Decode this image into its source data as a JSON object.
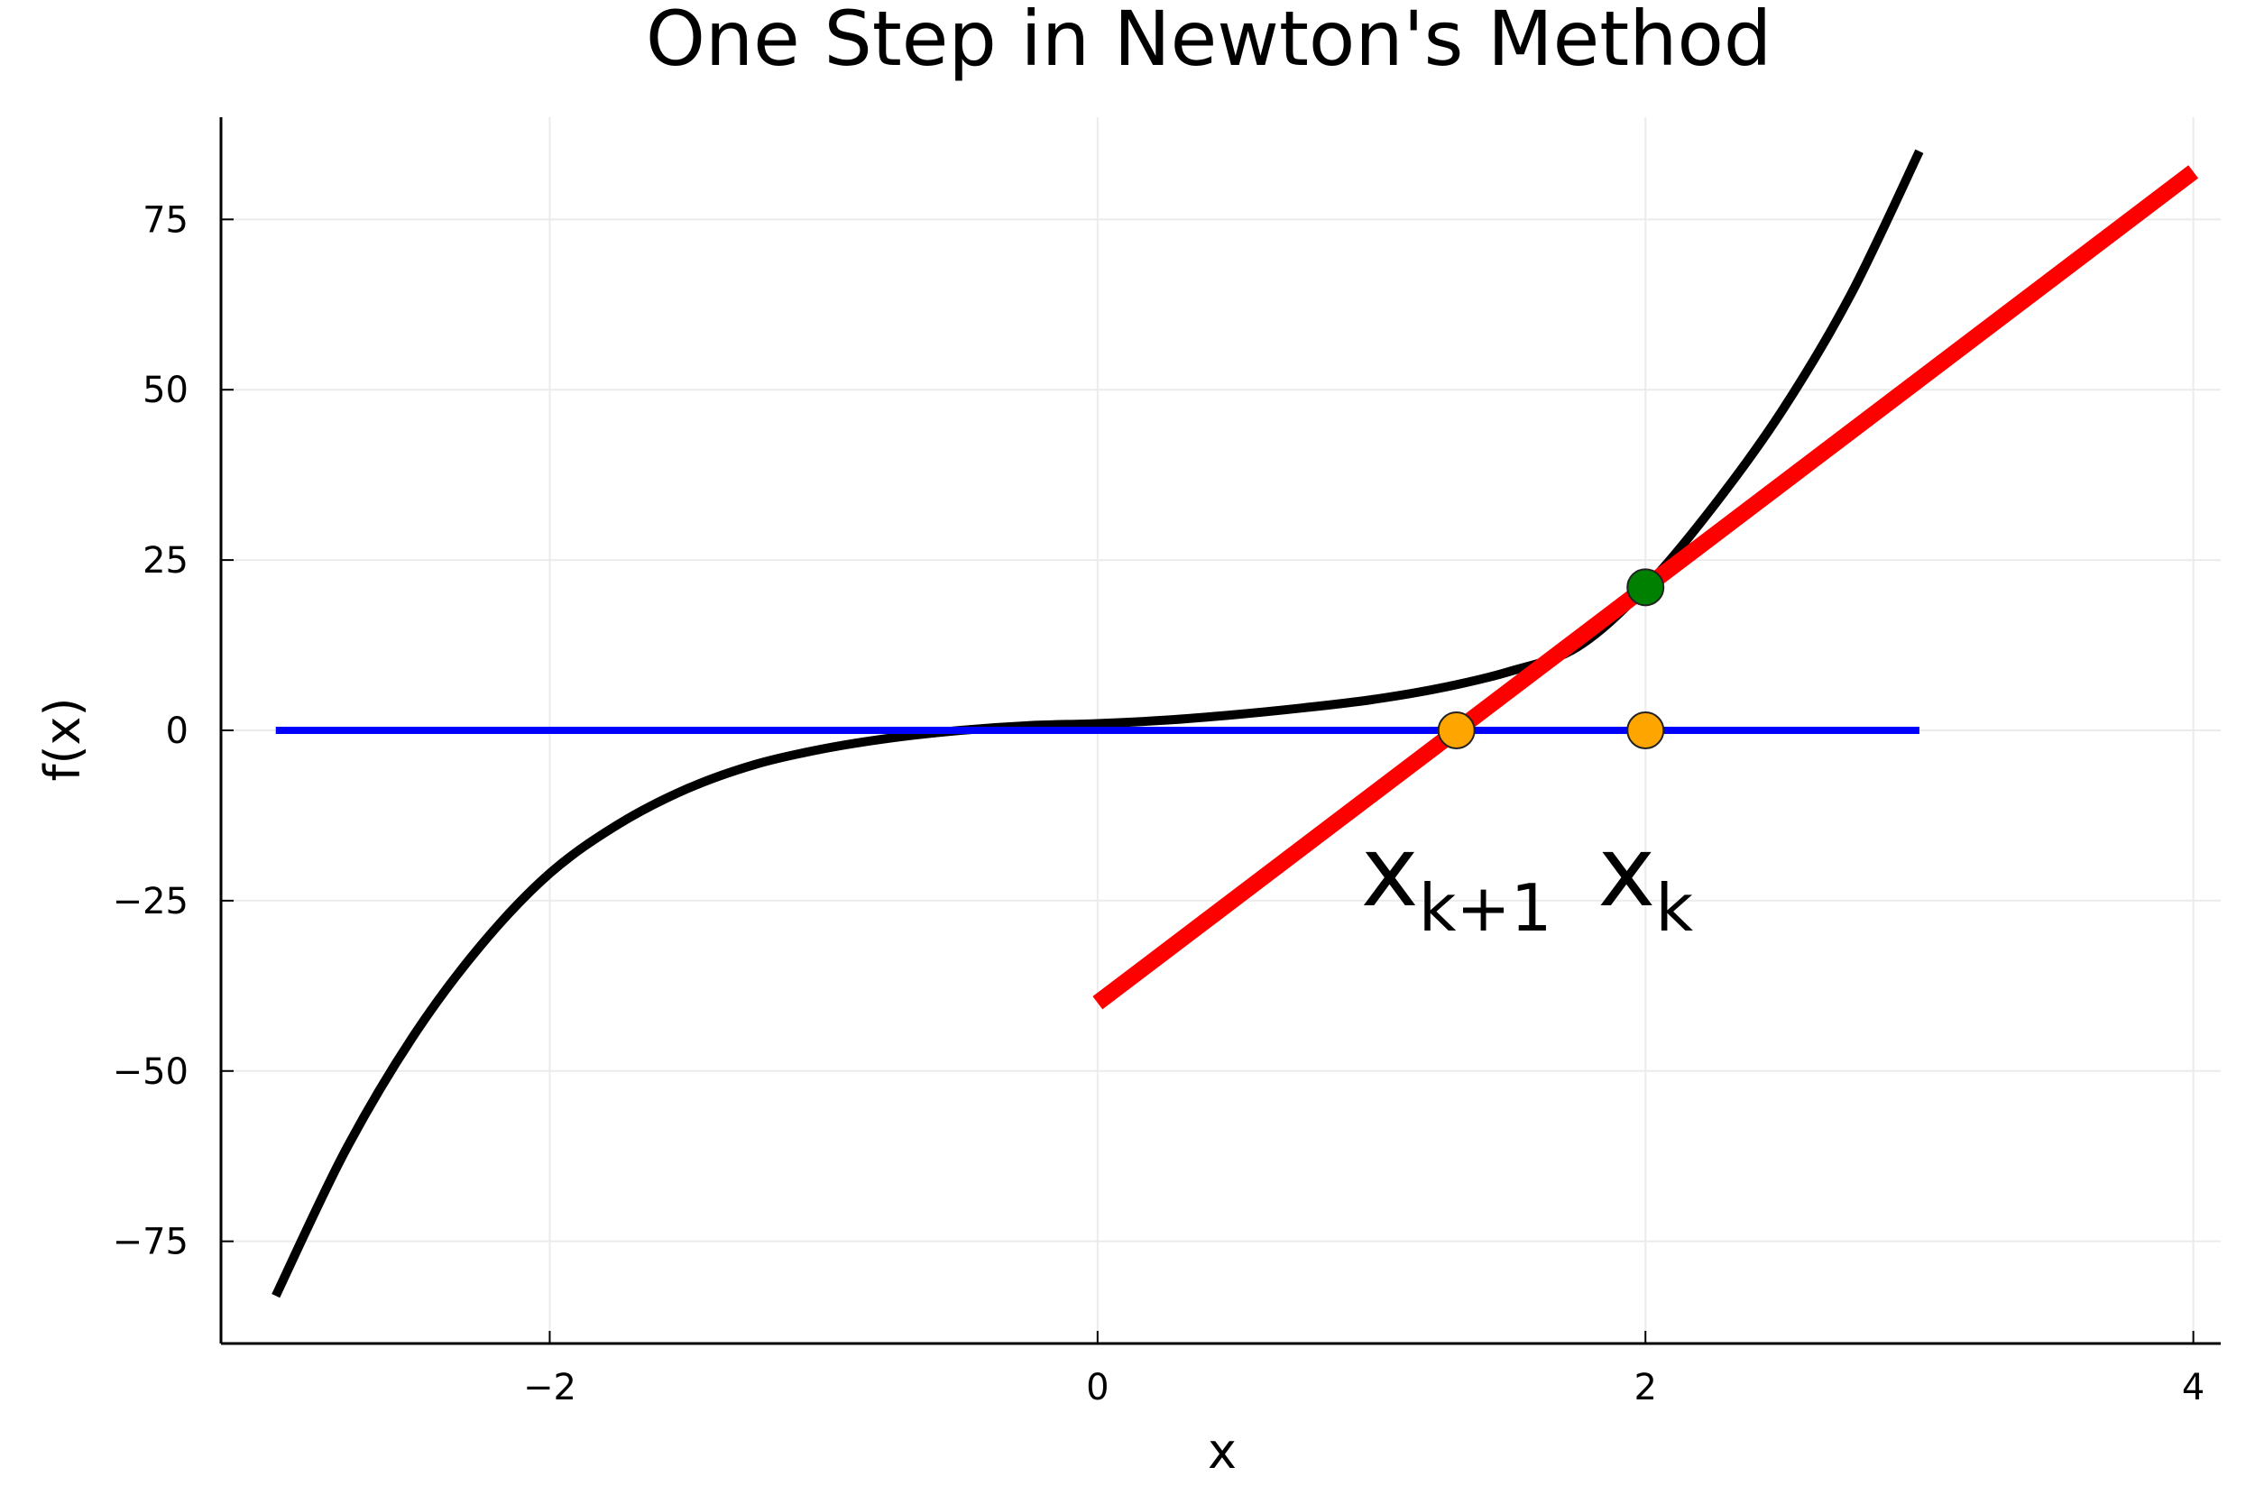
{
  "chart_data": {
    "type": "line",
    "title": "One Step in Newton's Method",
    "xlabel": "x",
    "ylabel": "f(x)",
    "xlim": [
      -3.2,
      4.1
    ],
    "ylim": [
      -90,
      90
    ],
    "xticks": [
      -2,
      0,
      2,
      4
    ],
    "xtick_labels": [
      "−2",
      "0",
      "2",
      "4"
    ],
    "yticks": [
      75,
      50,
      25,
      0,
      -25,
      -50,
      -75
    ],
    "ytick_labels": [
      "75",
      "50",
      "25",
      "0",
      "−25",
      "−50",
      "−75"
    ],
    "grid": true,
    "legend": "none",
    "series": [
      {
        "kind": "curve",
        "color": "#000000",
        "x": [
          -3.0,
          -2.75,
          -2.5,
          -2.25,
          -2.0,
          -1.75,
          -1.5,
          -1.25,
          -1.0,
          -0.75,
          -0.5,
          -0.25,
          0.0,
          0.25,
          0.5,
          0.75,
          1.0,
          1.25,
          1.5,
          1.75,
          2.0,
          2.25,
          2.5,
          2.75,
          3.0
        ],
        "y": [
          -83,
          -62,
          -45,
          -31.5,
          -21,
          -13.8,
          -8.6,
          -5.0,
          -2.7,
          -1.1,
          0.0,
          0.7,
          1.0,
          1.5,
          2.3,
          3.3,
          4.5,
          6.2,
          8.6,
          12.2,
          21,
          33,
          47,
          64,
          85
        ]
      },
      {
        "kind": "zero-line",
        "color": "#0000ff",
        "x": [
          -3.0,
          3.0
        ],
        "y": [
          0,
          0
        ]
      },
      {
        "kind": "tangent",
        "color": "#ff0000",
        "x": [
          0.0,
          4.0
        ],
        "y": [
          -40,
          82
        ]
      }
    ],
    "points": [
      {
        "x": 2.0,
        "y": 21,
        "color": "#008000"
      },
      {
        "x": 1.31,
        "y": 0,
        "color": "#ffa500"
      },
      {
        "x": 2.0,
        "y": 0,
        "color": "#ffa500"
      }
    ],
    "annotations": [
      {
        "base": "x",
        "sub": "k+1",
        "x": 1.31,
        "y": -13
      },
      {
        "base": "x",
        "sub": "k",
        "x": 2.0,
        "y": -13
      }
    ]
  }
}
